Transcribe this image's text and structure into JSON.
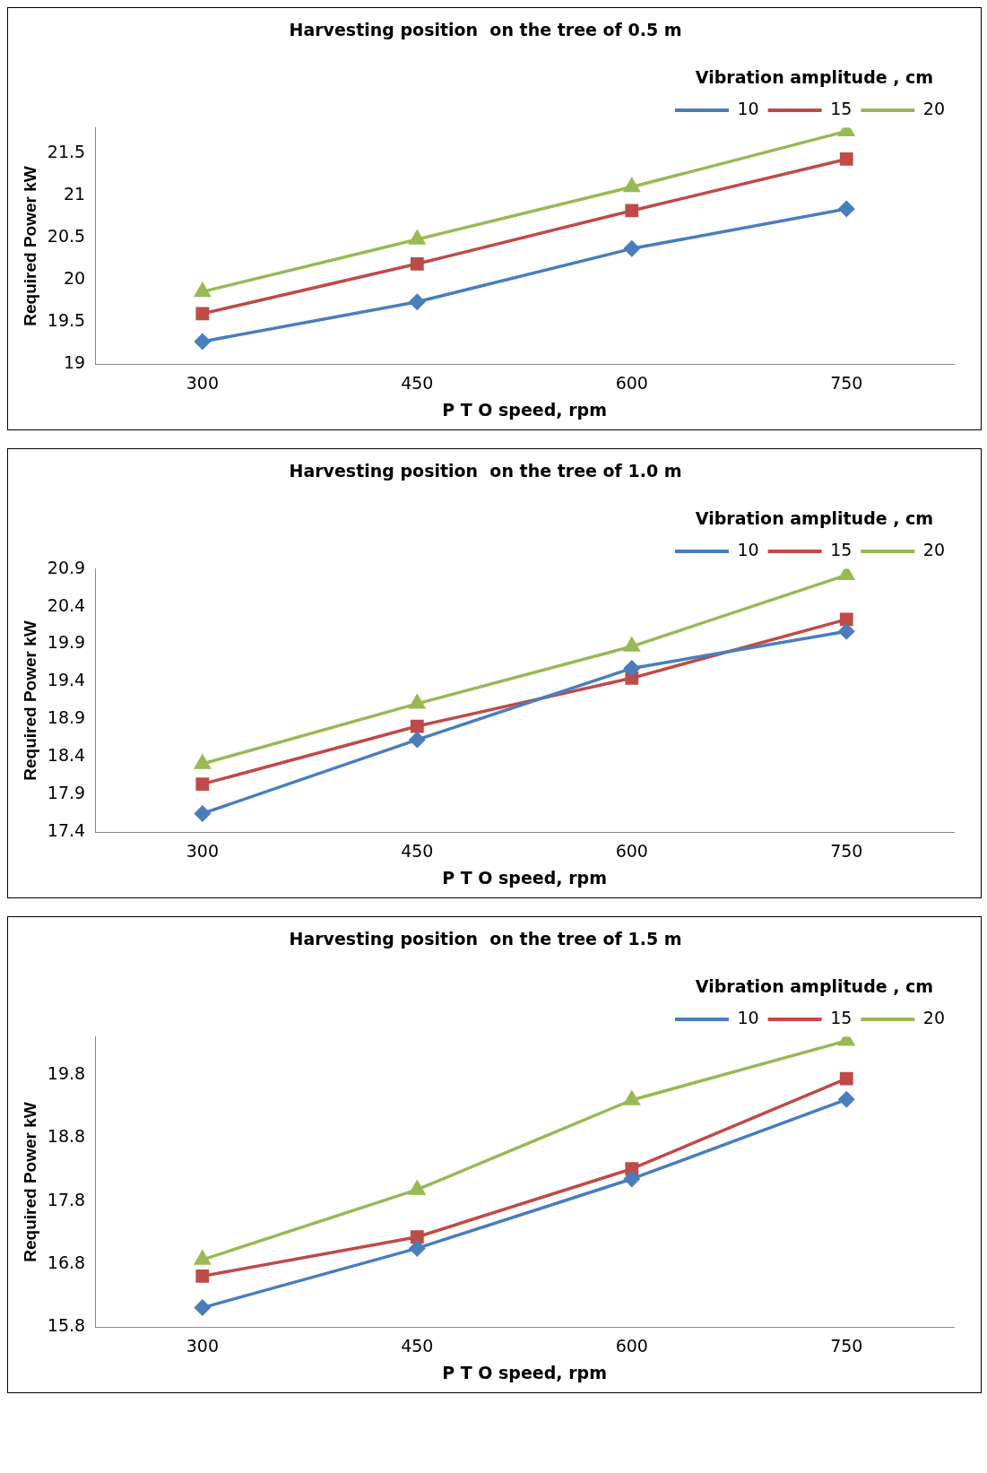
{
  "chart_data": [
    {
      "type": "line",
      "title": "Harvesting position  on the tree of 0.5 m",
      "xlabel": "P T O speed, rpm",
      "ylabel": "Required Power kW",
      "legend_title": "Vibration amplitude , cm",
      "legend": "top right",
      "grid": false,
      "categories": [
        "300",
        "450",
        "600",
        "750"
      ],
      "ylim": [
        19,
        21.8
      ],
      "yticks": [
        19,
        19.5,
        20,
        20.5,
        21,
        21.5
      ],
      "series": [
        {
          "name": "10",
          "color": "#4a7ebb",
          "marker": "diamond",
          "values": [
            19.27,
            19.74,
            20.37,
            20.84
          ]
        },
        {
          "name": "15",
          "color": "#be4b48",
          "marker": "square",
          "values": [
            19.6,
            20.19,
            20.82,
            21.43
          ]
        },
        {
          "name": "20",
          "color": "#98b954",
          "marker": "triangle",
          "values": [
            19.86,
            20.48,
            21.1,
            21.76
          ]
        }
      ]
    },
    {
      "type": "line",
      "title": "Harvesting position  on the tree of 1.0 m",
      "xlabel": "P T O speed, rpm",
      "ylabel": "Required Power kW",
      "legend_title": "Vibration amplitude , cm",
      "legend": "top right",
      "grid": false,
      "categories": [
        "300",
        "450",
        "600",
        "750"
      ],
      "ylim": [
        17.4,
        20.9
      ],
      "yticks": [
        17.4,
        17.9,
        18.4,
        18.9,
        19.4,
        19.9,
        20.4,
        20.9
      ],
      "series": [
        {
          "name": "10",
          "color": "#4a7ebb",
          "marker": "diamond",
          "values": [
            17.65,
            18.63,
            19.58,
            20.07
          ]
        },
        {
          "name": "15",
          "color": "#be4b48",
          "marker": "square",
          "values": [
            18.04,
            18.81,
            19.45,
            20.23
          ]
        },
        {
          "name": "20",
          "color": "#98b954",
          "marker": "triangle",
          "values": [
            18.31,
            19.11,
            19.87,
            20.82
          ]
        }
      ]
    },
    {
      "type": "line",
      "title": "Harvesting position  on the tree of 1.5 m",
      "xlabel": "P T O speed, rpm",
      "ylabel": "Required Power kW",
      "legend_title": "Vibration amplitude , cm",
      "legend": "top right",
      "grid": false,
      "categories": [
        "300",
        "450",
        "600",
        "750"
      ],
      "ylim": [
        15.8,
        20.4
      ],
      "yticks": [
        15.8,
        16.8,
        17.8,
        18.8,
        19.8
      ],
      "series": [
        {
          "name": "10",
          "color": "#4a7ebb",
          "marker": "diamond",
          "values": [
            16.11,
            17.05,
            18.15,
            19.41
          ]
        },
        {
          "name": "15",
          "color": "#be4b48",
          "marker": "square",
          "values": [
            16.61,
            17.23,
            18.31,
            19.74
          ]
        },
        {
          "name": "20",
          "color": "#98b954",
          "marker": "triangle",
          "values": [
            16.87,
            17.98,
            19.4,
            20.34
          ]
        }
      ]
    }
  ]
}
